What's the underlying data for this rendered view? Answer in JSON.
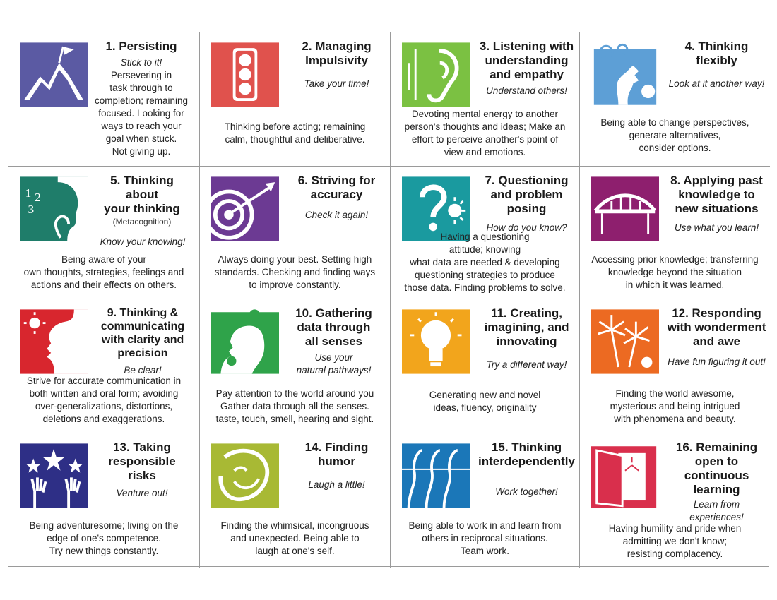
{
  "cards": [
    {
      "title": "1. Persisting",
      "motto": "Stick to it!",
      "desc": "Persevering in\ntask through to\ncompletion; remaining\nfocused. Looking for\nways to reach your\ngoal when stuck.\nNot giving up.",
      "icon": "mountain-climber-icon",
      "color": "#5b5aa3"
    },
    {
      "title": "2. Managing\nImpulsivity",
      "motto": "Take your time!",
      "desc": "Thinking before acting;  remaining\ncalm,  thoughtful and deliberative.",
      "icon": "traffic-light-icon",
      "color": "#e0524d"
    },
    {
      "title": "3. Listening with\nunderstanding\nand empathy",
      "motto": "Understand others!",
      "desc": "Devoting mental energy to another\nperson's thoughts and ideas; Make an\neffort to perceive  another's point of\nview and emotions.",
      "icon": "ear-icon",
      "color": "#7bc142"
    },
    {
      "title": "4. Thinking\nflexibly",
      "motto": "Look at it another way!",
      "desc": "Being able to change perspectives,\ngenerate alternatives,\nconsider options.",
      "icon": "face-profile-swirl-icon",
      "color": "#5d9fd6"
    },
    {
      "title": "5. Thinking\nabout\nyour thinking",
      "sub": "(Metacognition)",
      "motto": "Know your knowing!",
      "desc": "Being aware of your\nown thoughts, strategies, feelings and\nactions and their effects on others.",
      "icon": "thinking-face-icon",
      "color": "#1f7d6a"
    },
    {
      "title": "6. Striving for\naccuracy",
      "motto": "Check it again!",
      "desc": "Always doing your best. Setting high\nstandards. Checking and finding ways\nto improve constantly.",
      "icon": "target-arrow-icon",
      "color": "#6c3a93"
    },
    {
      "title": "7. Questioning\nand problem\nposing",
      "motto": "How do you know?",
      "desc": "Having a questioning\nattitude; knowing\nwhat data are needed & developing\nquestioning strategies to produce\nthose data. Finding problems to solve.",
      "icon": "question-mark-icon",
      "color": "#1a9a9f"
    },
    {
      "title": "8. Applying past\nknowledge to\nnew situations",
      "motto": "Use what you learn!",
      "desc": "Accessing prior knowledge; transferring\nknowledge beyond the situation\nin which it was learned.",
      "icon": "bridge-icon",
      "color": "#8e1f6e"
    },
    {
      "title": "9. Thinking &\ncommunicating\nwith clarity and\nprecision",
      "motto": "Be clear!",
      "desc": "Strive for accurate communication in\nboth written and oral form; avoiding\nover-generalizations, distortions,\ndeletions and exaggerations.",
      "icon": "speaking-face-icon",
      "color": "#d8262e"
    },
    {
      "title": "10. Gathering\ndata through\nall senses",
      "motto": "Use your\nnatural pathways!",
      "desc": "Pay attention to the world around you\nGather data through all the senses.\ntaste, touch, smell, hearing and sight.",
      "icon": "face-rose-icon",
      "color": "#2fa34a"
    },
    {
      "title": "11. Creating,\nimagining, and\ninnovating",
      "motto": "Try a different way!",
      "desc": "Generating new and novel\nideas, fluency, originality",
      "icon": "light-bulb-icon",
      "color": "#f2a51c"
    },
    {
      "title": "12. Responding\nwith wonderment\nand awe",
      "motto": "Have fun figuring it out!",
      "desc": "Finding the world awesome,\nmysterious and being intrigued\nwith phenomena and beauty.",
      "icon": "fireworks-icon",
      "color": "#ec6a22"
    },
    {
      "title": "13. Taking\nresponsible\nrisks",
      "motto": "Venture out!",
      "desc": "Being adventuresome; living on the\nedge of one's competence.\nTry new things constantly.",
      "icon": "hands-stars-icon",
      "color": "#2e2f86"
    },
    {
      "title": "14. Finding\nhumor",
      "motto": "Laugh a little!",
      "desc": "Finding the whimsical, incongruous\nand unexpected. Being able to\nlaugh at one's self.",
      "icon": "laughing-face-icon",
      "color": "#a8b934"
    },
    {
      "title": "15. Thinking\ninterdependently",
      "motto": "Work together!",
      "desc": "Being able to work in and learn from\nothers in reciprocal situations.\nTeam work.",
      "icon": "group-faces-icon",
      "color": "#1b77b8"
    },
    {
      "title": "16. Remaining\nopen to\ncontinuous\nlearning",
      "motto": "Learn from experiences!",
      "desc": "Having humility and pride when\nadmitting we don't know;\nresisting complacency.",
      "icon": "open-door-icon",
      "color": "#d92f4c"
    }
  ]
}
